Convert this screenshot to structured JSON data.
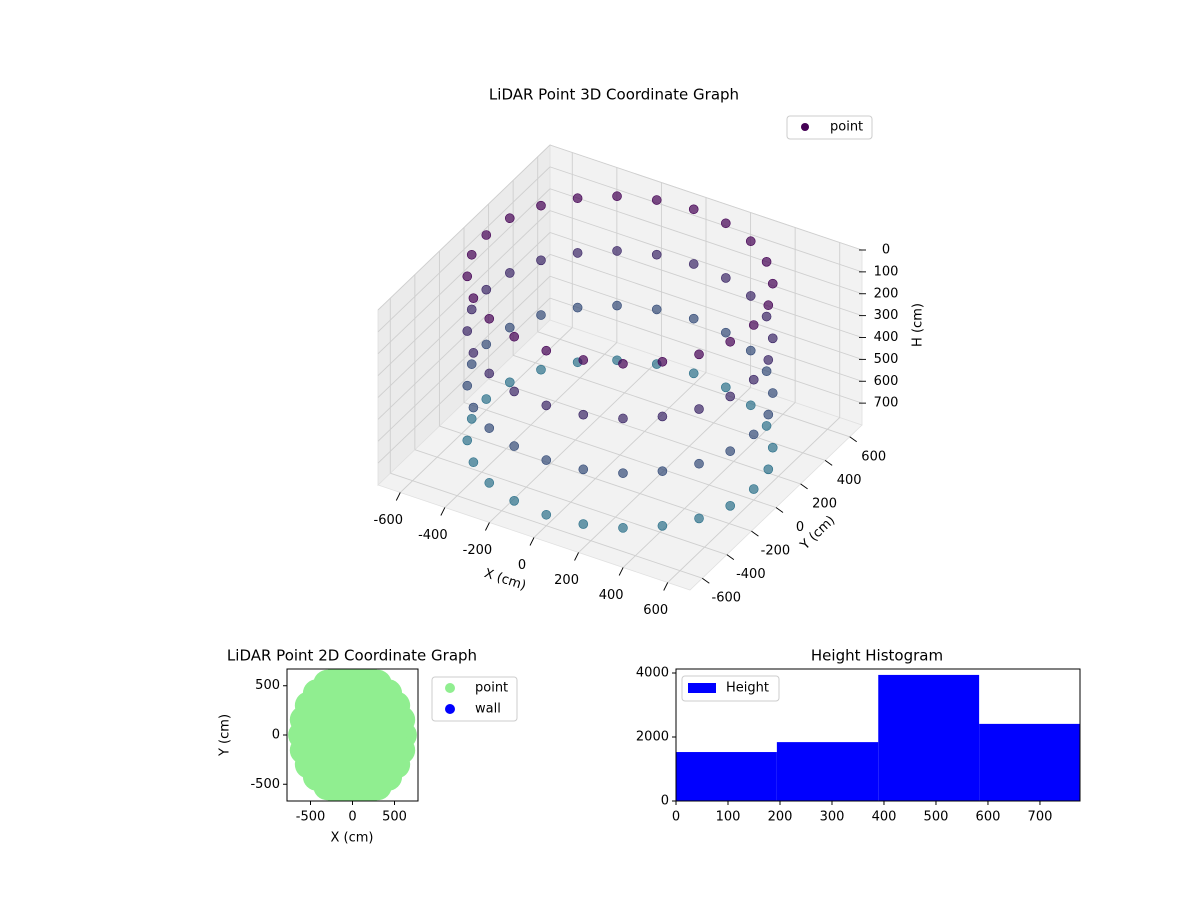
{
  "chart_data": [
    {
      "type": "scatter3d",
      "title": "LiDAR Point 3D Coordinate Graph",
      "xlabel": "X (cm)",
      "ylabel": "Y (cm)",
      "zlabel": "H (cm)",
      "xlim": [
        -700,
        700
      ],
      "ylim": [
        -700,
        700
      ],
      "zlim": [
        0,
        800
      ],
      "zaxis_inverted": true,
      "xticks": [
        -600,
        -400,
        -200,
        0,
        200,
        400,
        600
      ],
      "yticks": [
        -600,
        -400,
        -200,
        0,
        200,
        400,
        600
      ],
      "zticks": [
        0,
        100,
        200,
        300,
        400,
        500,
        600,
        700
      ],
      "grid": true,
      "legend": "upper right",
      "color_range": [
        "#440154",
        "#2a788e"
      ],
      "series": [
        {
          "name": "point",
          "color": "#440154",
          "x": [
            600,
            580,
            520,
            424,
            300,
            155,
            0,
            -155,
            -300,
            -424,
            -520,
            -580,
            -600,
            -580,
            -520,
            -424,
            -300,
            -155,
            0,
            155,
            300,
            424,
            520,
            580,
            600,
            580,
            520,
            424,
            300,
            155,
            0,
            -155,
            -300,
            -424,
            -520,
            -580,
            -600,
            -580,
            -520,
            -424,
            -300,
            -155,
            0,
            155,
            300,
            424,
            520,
            580,
            600,
            580,
            520,
            424,
            300,
            155,
            0,
            -155,
            -300,
            -424,
            -520,
            -580,
            -600,
            -580,
            -520,
            -424,
            -300,
            -155,
            0,
            155,
            300,
            424,
            520,
            580,
            600,
            580,
            520,
            424,
            300,
            155,
            0,
            -155,
            -300,
            -424,
            -520,
            -580,
            -600,
            -580,
            -520,
            -424,
            -300,
            -155,
            0,
            155,
            300,
            424,
            520,
            580
          ],
          "y": [
            0,
            155,
            300,
            424,
            520,
            580,
            600,
            580,
            520,
            424,
            300,
            155,
            0,
            -155,
            -300,
            -424,
            -520,
            -580,
            -600,
            -580,
            -520,
            -424,
            -300,
            -155,
            0,
            155,
            300,
            424,
            520,
            580,
            600,
            580,
            520,
            424,
            300,
            155,
            0,
            -155,
            -300,
            -424,
            -520,
            -580,
            -600,
            -580,
            -520,
            -424,
            -300,
            -155,
            0,
            155,
            300,
            424,
            520,
            580,
            600,
            580,
            520,
            424,
            300,
            155,
            0,
            -155,
            -300,
            -424,
            -520,
            -580,
            -600,
            -580,
            -520,
            -424,
            -300,
            -155,
            0,
            155,
            300,
            424,
            520,
            580,
            600,
            580,
            520,
            424,
            300,
            155,
            0,
            -155,
            -300,
            -424,
            -520,
            -580,
            -600,
            -580,
            -520,
            -424,
            -300,
            -155
          ],
          "z": [
            0,
            0,
            0,
            0,
            0,
            0,
            0,
            0,
            0,
            0,
            0,
            0,
            0,
            0,
            0,
            0,
            0,
            0,
            0,
            0,
            0,
            0,
            0,
            0,
            250,
            250,
            250,
            250,
            250,
            250,
            250,
            250,
            250,
            250,
            250,
            250,
            250,
            250,
            250,
            250,
            250,
            250,
            250,
            250,
            250,
            250,
            250,
            250,
            500,
            500,
            500,
            500,
            500,
            500,
            500,
            500,
            500,
            500,
            500,
            500,
            500,
            500,
            500,
            500,
            500,
            500,
            500,
            500,
            500,
            500,
            500,
            500,
            750,
            750,
            750,
            750,
            750,
            750,
            750,
            750,
            750,
            750,
            750,
            750,
            750,
            750,
            750,
            750,
            750,
            750,
            750,
            750,
            750,
            750,
            750,
            750
          ]
        }
      ]
    },
    {
      "type": "scatter",
      "title": "LiDAR Point 2D Coordinate Graph",
      "xlabel": "X (cm)",
      "ylabel": "Y (cm)",
      "xlim": [
        -780,
        780
      ],
      "ylim": [
        -670,
        670
      ],
      "xticks": [
        -500,
        0,
        500
      ],
      "yticks": [
        -500,
        0,
        500
      ],
      "legend": "outside upper right",
      "series": [
        {
          "name": "point",
          "color": "#90ee90",
          "x": [
            600,
            580,
            520,
            424,
            300,
            155,
            0,
            -155,
            -300,
            -424,
            -520,
            -580,
            -600,
            -580,
            -520,
            -424,
            -300,
            -155,
            0,
            155,
            300,
            424,
            520,
            580,
            400,
            346,
            200,
            0,
            -200,
            -346,
            -400,
            -346,
            -200,
            0,
            200,
            346,
            200,
            100,
            -100,
            -200,
            -100,
            100,
            0
          ],
          "y": [
            0,
            155,
            300,
            424,
            520,
            580,
            600,
            580,
            520,
            424,
            300,
            155,
            0,
            -155,
            -300,
            -424,
            -520,
            -580,
            -600,
            -580,
            -520,
            -424,
            -300,
            -155,
            0,
            200,
            346,
            400,
            346,
            200,
            0,
            -200,
            -346,
            -400,
            -346,
            -200,
            0,
            173,
            173,
            0,
            -173,
            -173,
            0
          ]
        },
        {
          "name": "wall",
          "color": "#0000ff",
          "x": [],
          "y": []
        }
      ]
    },
    {
      "type": "histogram",
      "title": "Height Histogram",
      "xlim": [
        0,
        777
      ],
      "ylim": [
        0,
        4125
      ],
      "xticks": [
        0,
        100,
        200,
        300,
        400,
        500,
        600,
        700
      ],
      "yticks": [
        0,
        2000,
        4000
      ],
      "legend": "upper left",
      "series": [
        {
          "name": "Height",
          "color": "#0000ff",
          "bins": [
            0,
            194,
            389,
            583,
            777
          ],
          "values": [
            1530,
            1840,
            3940,
            2410
          ]
        }
      ]
    }
  ]
}
